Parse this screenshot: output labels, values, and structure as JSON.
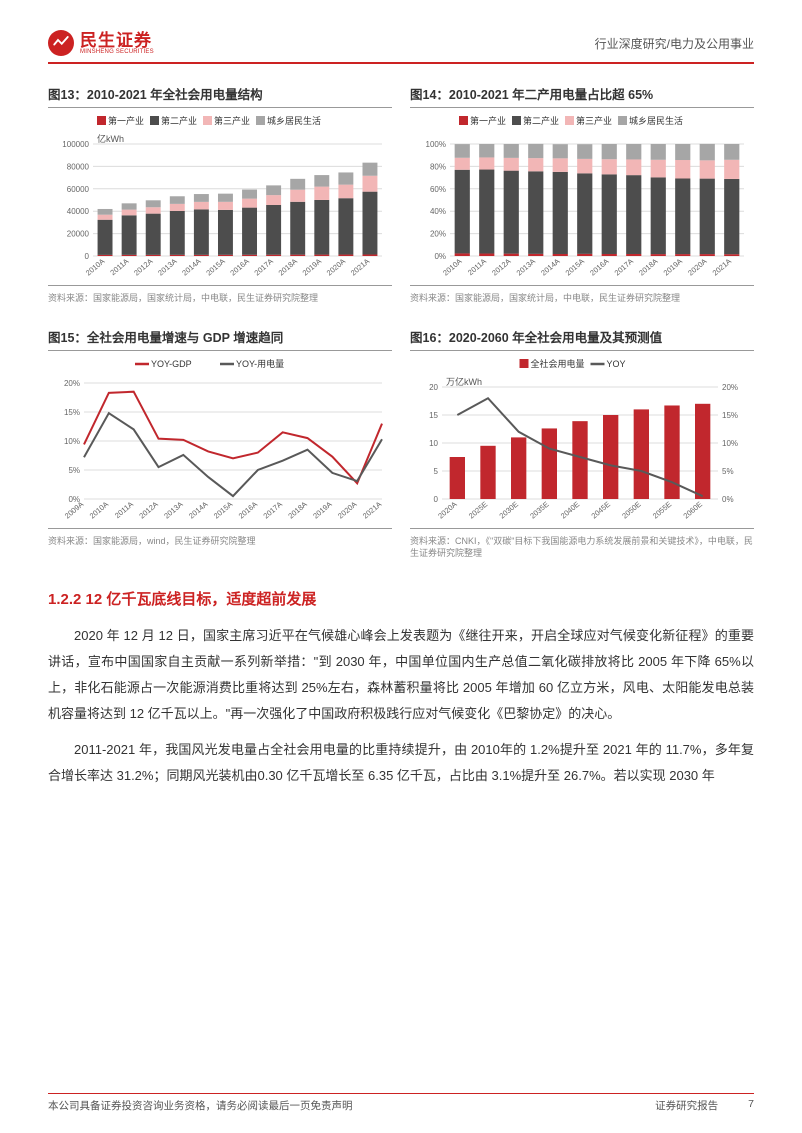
{
  "header": {
    "logo_cn": "民生证券",
    "logo_en": "MINSHENG SECURITIES",
    "right_text": "行业深度研究/电力及公用事业"
  },
  "chart13": {
    "title": "图13：2010-2021 年全社会用电量结构",
    "type": "stacked-bar",
    "unit": "亿kWh",
    "legend": [
      {
        "label": "第一产业",
        "color": "#c1272d"
      },
      {
        "label": "第二产业",
        "color": "#4d4d4d"
      },
      {
        "label": "第三产业",
        "color": "#f2b6b6"
      },
      {
        "label": "城乡居民生活",
        "color": "#a6a6a6"
      }
    ],
    "categories": [
      "2010A",
      "2011A",
      "2012A",
      "2013A",
      "2014A",
      "2015A",
      "2016A",
      "2017A",
      "2018A",
      "2019A",
      "2020A",
      "2021A"
    ],
    "series": {
      "第一产业": [
        984,
        1015,
        1028,
        1035,
        1020,
        1060,
        1100,
        1155,
        1200,
        1250,
        1300,
        1350
      ],
      "第二产业": [
        31400,
        35300,
        36800,
        39200,
        40600,
        40100,
        42100,
        44400,
        47200,
        48800,
        50300,
        56100
      ],
      "第三产业": [
        4500,
        5100,
        5700,
        6300,
        6700,
        7200,
        8000,
        8800,
        10800,
        11900,
        12100,
        14200
      ],
      "城乡居民生活": [
        5100,
        5600,
        6200,
        6800,
        7000,
        7300,
        8100,
        8700,
        9700,
        10300,
        10900,
        11700
      ]
    },
    "ylim": [
      0,
      100000
    ],
    "ytick_step": 20000,
    "background_color": "#ffffff",
    "grid_color": "#dcdcdc",
    "bar_width": 0.62,
    "label_fontsize": 8
  },
  "chart14": {
    "title": "图14：2010-2021 年二产用电量占比超 65%",
    "type": "stacked-bar-percent",
    "legend": [
      {
        "label": "第一产业",
        "color": "#c1272d"
      },
      {
        "label": "第二产业",
        "color": "#4d4d4d"
      },
      {
        "label": "第三产业",
        "color": "#f2b6b6"
      },
      {
        "label": "城乡居民生活",
        "color": "#a6a6a6"
      }
    ],
    "categories": [
      "2010A",
      "2011A",
      "2012A",
      "2013A",
      "2014A",
      "2015A",
      "2016A",
      "2017A",
      "2018A",
      "2019A",
      "2020A",
      "2021A"
    ],
    "series_pct": {
      "第一产业": [
        2.3,
        2.2,
        2.1,
        1.9,
        1.8,
        1.9,
        1.8,
        1.8,
        1.7,
        1.7,
        1.7,
        1.6
      ],
      "第二产业": [
        74.7,
        75.0,
        74.1,
        73.7,
        73.3,
        71.9,
        71.1,
        70.4,
        68.5,
        67.5,
        67.4,
        67.2
      ],
      "第三产业": [
        10.7,
        10.8,
        11.4,
        11.8,
        12.1,
        12.9,
        13.5,
        14.0,
        15.7,
        16.5,
        16.3,
        17.1
      ],
      "城乡居民生活": [
        12.2,
        12.0,
        12.4,
        12.7,
        12.6,
        13.1,
        13.6,
        13.8,
        14.1,
        14.3,
        14.7,
        14.1
      ]
    },
    "ylim": [
      0,
      100
    ],
    "ytick_step": 20,
    "ylabel_suffix": "%",
    "background_color": "#ffffff",
    "grid_color": "#dcdcdc",
    "bar_width": 0.62,
    "label_fontsize": 8
  },
  "chart15": {
    "title": "图15：全社会用电量增速与 GDP 增速趋同",
    "type": "line",
    "legend": [
      {
        "label": "YOY-GDP",
        "color": "#c1272d"
      },
      {
        "label": "YOY-用电量",
        "color": "#595959"
      }
    ],
    "categories": [
      "2009A",
      "2010A",
      "2011A",
      "2012A",
      "2013A",
      "2014A",
      "2015A",
      "2016A",
      "2017A",
      "2018A",
      "2019A",
      "2020A",
      "2021A"
    ],
    "series": {
      "YOY-GDP": [
        9.4,
        18.3,
        18.5,
        10.4,
        10.2,
        8.2,
        7.0,
        8.0,
        11.5,
        10.5,
        7.3,
        2.7,
        13.0
      ],
      "YOY-用电量": [
        7.2,
        14.8,
        12.0,
        5.5,
        7.6,
        3.8,
        0.5,
        5.0,
        6.6,
        8.5,
        4.5,
        3.1,
        10.3
      ]
    },
    "ylim": [
      0,
      20
    ],
    "ytick_step": 5,
    "ylabel_suffix": "%",
    "background_color": "#ffffff",
    "grid_color": "#dcdcdc",
    "line_width": 2,
    "label_fontsize": 8
  },
  "chart16": {
    "title": "图16：2020-2060 年全社会用电量及其预测值",
    "type": "bar-line-dual-axis",
    "unit": "万亿kWh",
    "legend": [
      {
        "label": "全社会用电量",
        "color": "#c1272d",
        "kind": "bar"
      },
      {
        "label": "YOY",
        "color": "#595959",
        "kind": "line"
      }
    ],
    "categories": [
      "2020A",
      "2025E",
      "2030E",
      "2035E",
      "2040E",
      "2045E",
      "2050E",
      "2055E",
      "2060E"
    ],
    "bar_series": [
      7.5,
      9.5,
      11.0,
      12.6,
      13.9,
      15.0,
      16.0,
      16.7,
      17.0
    ],
    "line_series": [
      15.0,
      18.0,
      12.0,
      9.0,
      7.5,
      6.0,
      5.0,
      3.0,
      0.5
    ],
    "y1_lim": [
      0,
      20
    ],
    "y1_tick_step": 5,
    "y2_lim": [
      0,
      20
    ],
    "y2_tick_step": 5,
    "y2_label_suffix": "%",
    "background_color": "#ffffff",
    "grid_color": "#dcdcdc",
    "bar_width": 0.5,
    "line_width": 2,
    "label_fontsize": 8
  },
  "sources": {
    "s13": "资料来源：国家能源局，国家统计局，中电联，民生证券研究院整理",
    "s14": "资料来源：国家能源局，国家统计局，中电联，民生证券研究院整理",
    "s15": "资料来源：国家能源局，wind，民生证券研究院整理",
    "s16": "资料来源：CNKI，《\"双碳\"目标下我国能源电力系统发展前景和关键技术》，中电联，民生证券研究院整理"
  },
  "section": {
    "heading": "1.2.2 12 亿千瓦底线目标，适度超前发展",
    "para1": "2020 年 12 月 12 日，国家主席习近平在气候雄心峰会上发表题为《继往开来，开启全球应对气候变化新征程》的重要讲话，宣布中国国家自主贡献一系列新举措：\"到 2030 年，中国单位国内生产总值二氧化碳排放将比 2005 年下降 65%以上，非化石能源占一次能源消费比重将达到 25%左右，森林蓄积量将比 2005 年增加 60 亿立方米，风电、太阳能发电总装机容量将达到 12 亿千瓦以上。\"再一次强化了中国政府积极践行应对气候变化《巴黎协定》的决心。",
    "para2": "2011-2021 年，我国风光发电量占全社会用电量的比重持续提升，由 2010年的 1.2%提升至 2021 年的 11.7%，多年复合增长率达 31.2%；同期风光装机由0.30 亿千瓦增长至 6.35 亿千瓦，占比由 3.1%提升至 26.7%。若以实现 2030 年"
  },
  "footer": {
    "left": "本公司具备证券投资咨询业务资格，请务必阅读最后一页免责声明",
    "right1": "证券研究报告",
    "right2": "7"
  }
}
